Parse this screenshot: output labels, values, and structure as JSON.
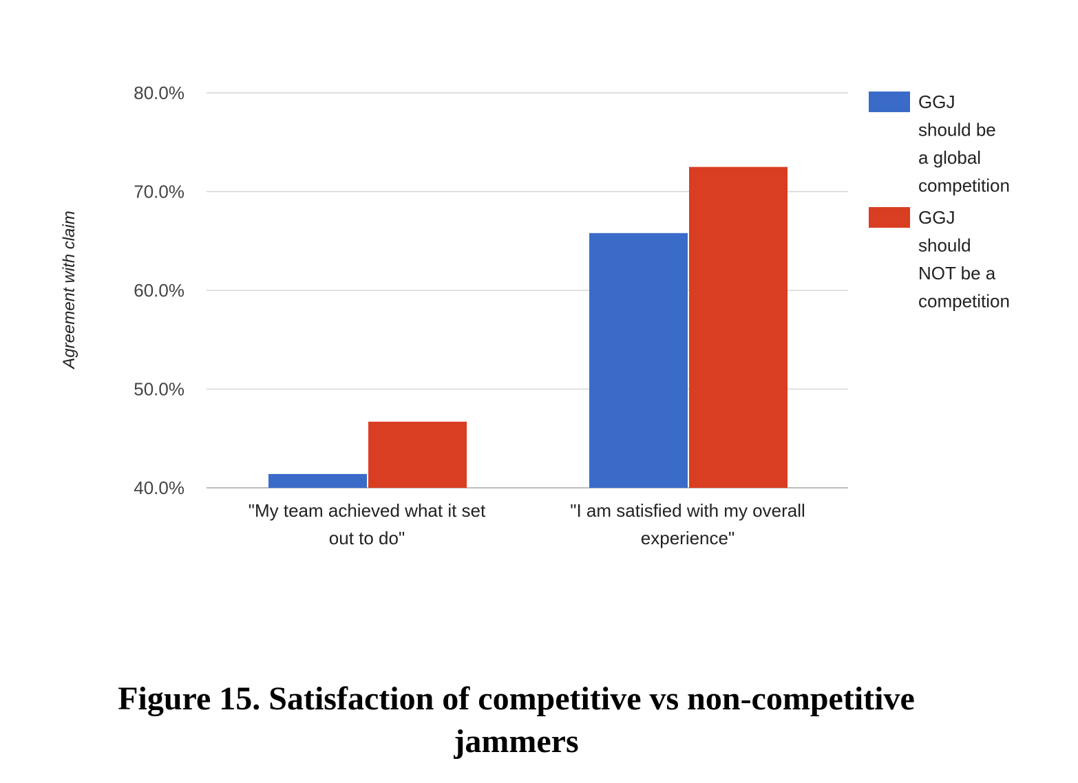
{
  "chart_data": {
    "type": "bar",
    "title": "",
    "xlabel": "",
    "ylabel": "Agreement with claim",
    "ylim": [
      40,
      80
    ],
    "yticks": [
      40,
      50,
      60,
      70,
      80
    ],
    "ytick_labels": [
      "40.0%",
      "50.0%",
      "60.0%",
      "70.0%",
      "80.0%"
    ],
    "grid": true,
    "legend_position": "right",
    "categories": [
      [
        "\"My team achieved what it set",
        "out to do\""
      ],
      [
        "\"I am satisfied with my overall",
        "experience\""
      ]
    ],
    "series": [
      {
        "name": "GGJ should be a global competition",
        "legend_lines": [
          "GGJ",
          "should be",
          "a global",
          "competition"
        ],
        "color": "#3a6bc9",
        "values": [
          41.4,
          65.8
        ]
      },
      {
        "name": "GGJ should NOT be a competition",
        "legend_lines": [
          "GGJ",
          "should",
          "NOT be a",
          "competition"
        ],
        "color": "#d93d22",
        "values": [
          46.7,
          72.5
        ]
      }
    ]
  },
  "caption": {
    "line1": "Figure 15. Satisfaction of competitive vs non-competitive",
    "line2": "jammers"
  }
}
